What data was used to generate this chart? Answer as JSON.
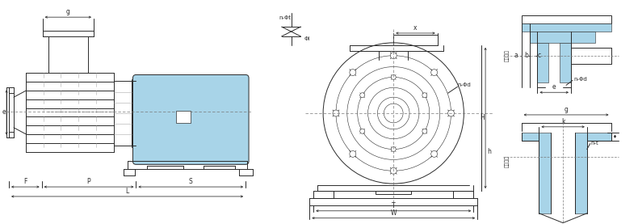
{
  "bg_color": "#ffffff",
  "lc": "#2a2a2a",
  "bc": "#a8d4e8",
  "dpi": 100,
  "fig_width": 7.9,
  "fig_height": 2.77,
  "labels": {
    "g": "g",
    "e": "e",
    "F": "F",
    "P": "P",
    "S": "S",
    "L": "L",
    "x": "x",
    "H": "H",
    "h": "h",
    "T": "T",
    "W": "W",
    "n_Phi_t": "n-Φt",
    "Phi_i": "Φi",
    "n_Phi_d": "n-Φd",
    "a": "a",
    "b": "b",
    "c": "c",
    "n_Phi_d2": "n-Φd",
    "k": "k",
    "n_t": "n-t",
    "inlet_zh": "进口尺寸",
    "outlet_zh": "出口尺寸",
    "e_small": "e"
  }
}
